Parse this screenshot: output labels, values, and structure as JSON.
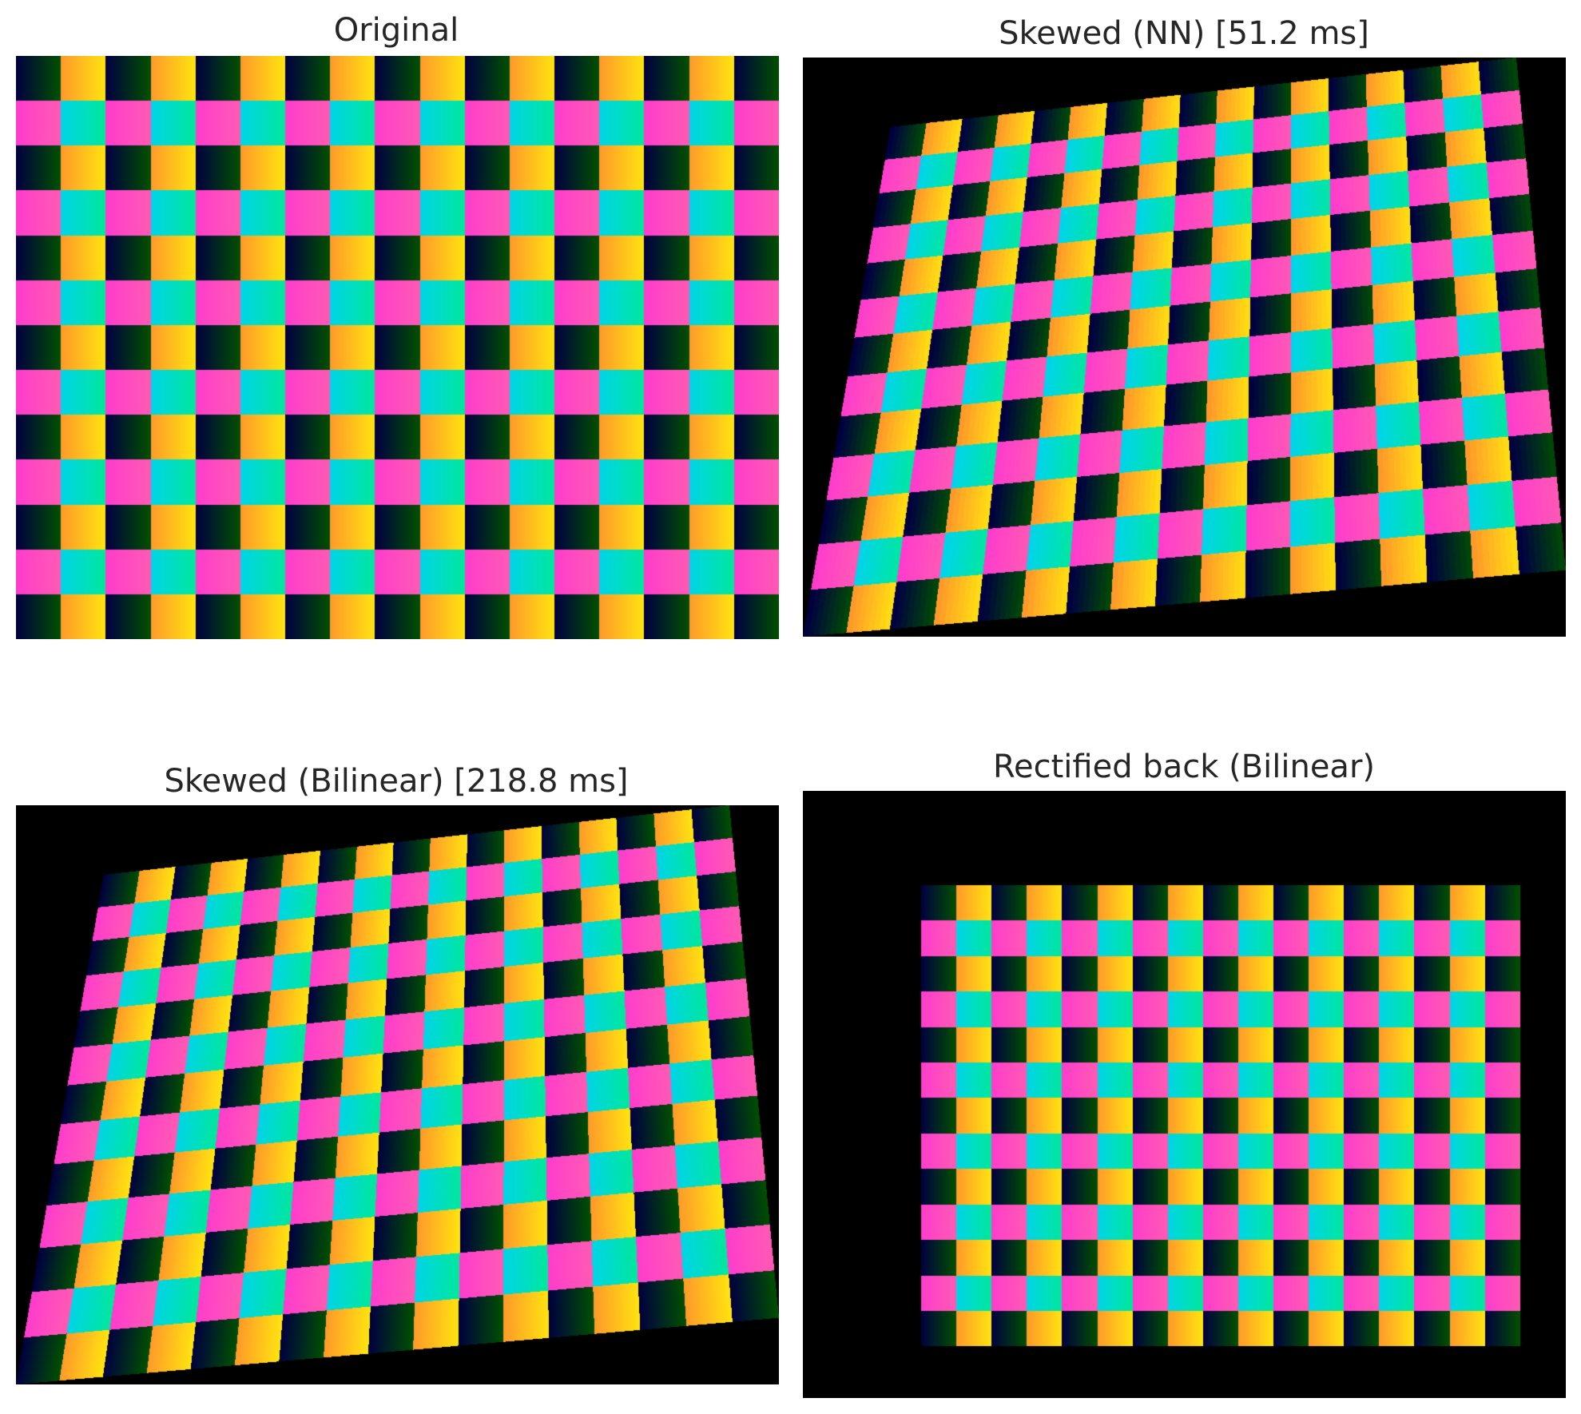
{
  "figure": {
    "background_color": "#ffffff",
    "title_color": "#262626",
    "canvas_background": "#000000",
    "pattern": {
      "columns": 17,
      "rows": 13,
      "gradient_colors": {
        "dark_cell": [
          "#000040",
          "#005000"
        ],
        "light_cell": [
          "#ff9a2a",
          "#ffe410"
        ],
        "pink_cell": [
          "#ff3ccc",
          "#ff5ab4"
        ],
        "cyan_cell": [
          "#00d4e8",
          "#00e89c"
        ]
      }
    },
    "panels": [
      {
        "id": "original",
        "title": "Original",
        "transform": "identity",
        "interpolation": "none"
      },
      {
        "id": "skewed-nn",
        "title": "Skewed (NN)  [51.2 ms]",
        "transform": "perspective-skew",
        "interpolation": "nearest"
      },
      {
        "id": "skewed-bilinear",
        "title": "Skewed (Bilinear)  [218.8 ms]",
        "transform": "perspective-skew",
        "interpolation": "bilinear"
      },
      {
        "id": "rectified",
        "title": "Rectified back (Bilinear)",
        "transform": "rectified-crop",
        "interpolation": "bilinear"
      }
    ]
  }
}
